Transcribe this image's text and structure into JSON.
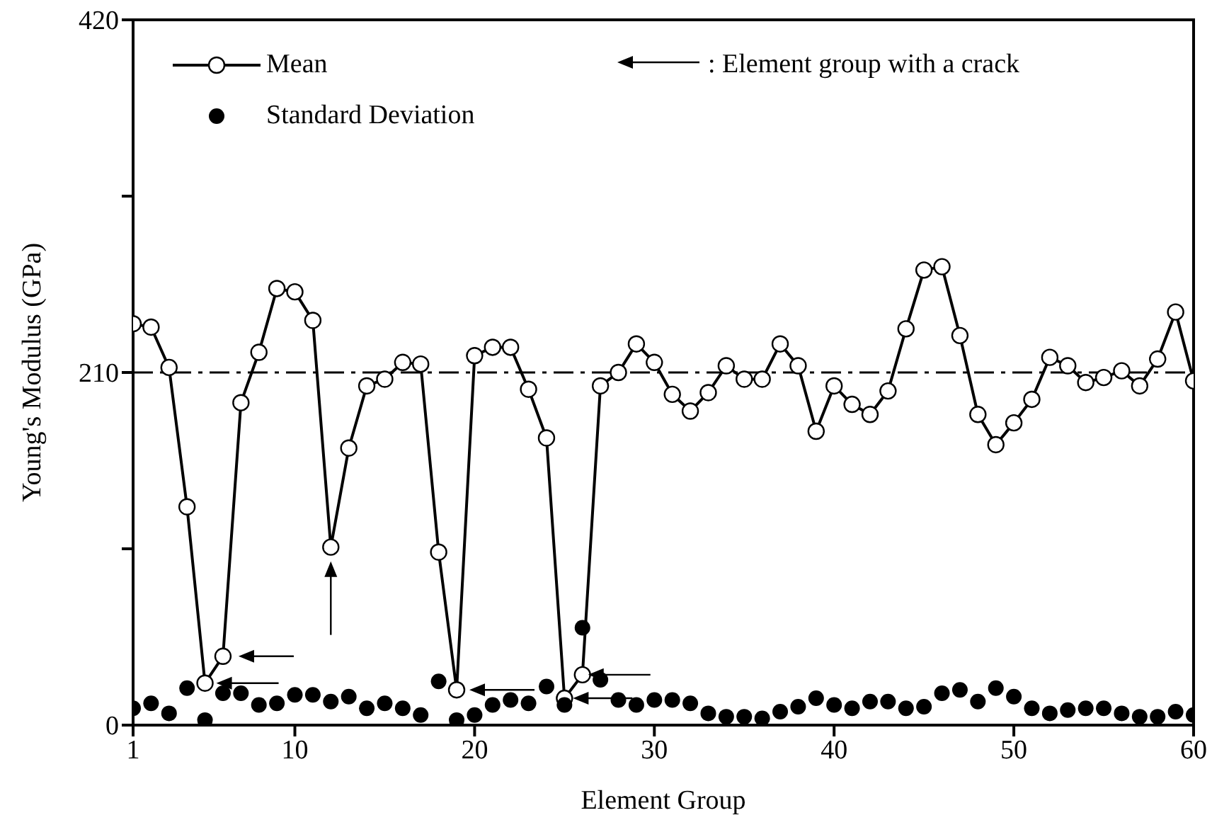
{
  "chart_data": {
    "type": "line",
    "xlabel": "Element Group",
    "ylabel": "Young's Modulus (GPa)",
    "x": [
      1,
      2,
      3,
      4,
      5,
      6,
      7,
      8,
      9,
      10,
      11,
      12,
      13,
      14,
      15,
      16,
      17,
      18,
      19,
      20,
      21,
      22,
      23,
      24,
      25,
      26,
      27,
      28,
      29,
      30,
      31,
      32,
      33,
      34,
      35,
      36,
      37,
      38,
      39,
      40,
      41,
      42,
      43,
      44,
      45,
      46,
      47,
      48,
      49,
      50,
      51,
      52,
      53,
      54,
      55,
      56,
      57,
      58,
      59,
      60
    ],
    "series": [
      {
        "name": "Mean",
        "color": "#000000",
        "marker": "circle",
        "values": [
          239,
          237,
          213,
          130,
          25,
          41,
          192,
          222,
          260,
          258,
          241,
          106,
          165,
          202,
          206,
          216,
          215,
          103,
          21,
          220,
          225,
          225,
          200,
          171,
          16,
          30,
          202,
          210,
          227,
          216,
          197,
          187,
          198,
          214,
          206,
          206,
          227,
          214,
          175,
          202,
          191,
          185,
          199,
          236,
          271,
          273,
          232,
          185,
          167,
          180,
          194,
          219,
          214,
          204,
          207,
          211,
          202,
          218,
          246,
          205
        ]
      },
      {
        "name": "Standard Deviation",
        "type": "scatter",
        "color": "#000000",
        "marker": "circle",
        "values": [
          10,
          13,
          7,
          22,
          3,
          19,
          19,
          12,
          13,
          18,
          18,
          14,
          17,
          10,
          13,
          10,
          6,
          26,
          3,
          6,
          12,
          15,
          13,
          23,
          12,
          58,
          27,
          15,
          12,
          15,
          15,
          13,
          7,
          5,
          5,
          4,
          8,
          11,
          16,
          12,
          10,
          14,
          14,
          10,
          11,
          19,
          21,
          14,
          22,
          17,
          10,
          7,
          9,
          10,
          10,
          7,
          5,
          5,
          8,
          6
        ]
      }
    ],
    "xlim": [
      1,
      60
    ],
    "xticks": [
      1,
      10,
      20,
      30,
      40,
      50,
      60
    ],
    "ylim": [
      0,
      420
    ],
    "yticks": [
      0,
      {
        "value": 105,
        "label": null
      },
      210,
      {
        "value": 315,
        "label": null
      },
      420
    ],
    "ref_lines": [
      {
        "axis": "y",
        "value": 210,
        "color": "#000000",
        "line_style": "dashdot"
      }
    ],
    "annotations": [
      ": Element group with a crack"
    ],
    "legend": "top left",
    "grid": false
  }
}
